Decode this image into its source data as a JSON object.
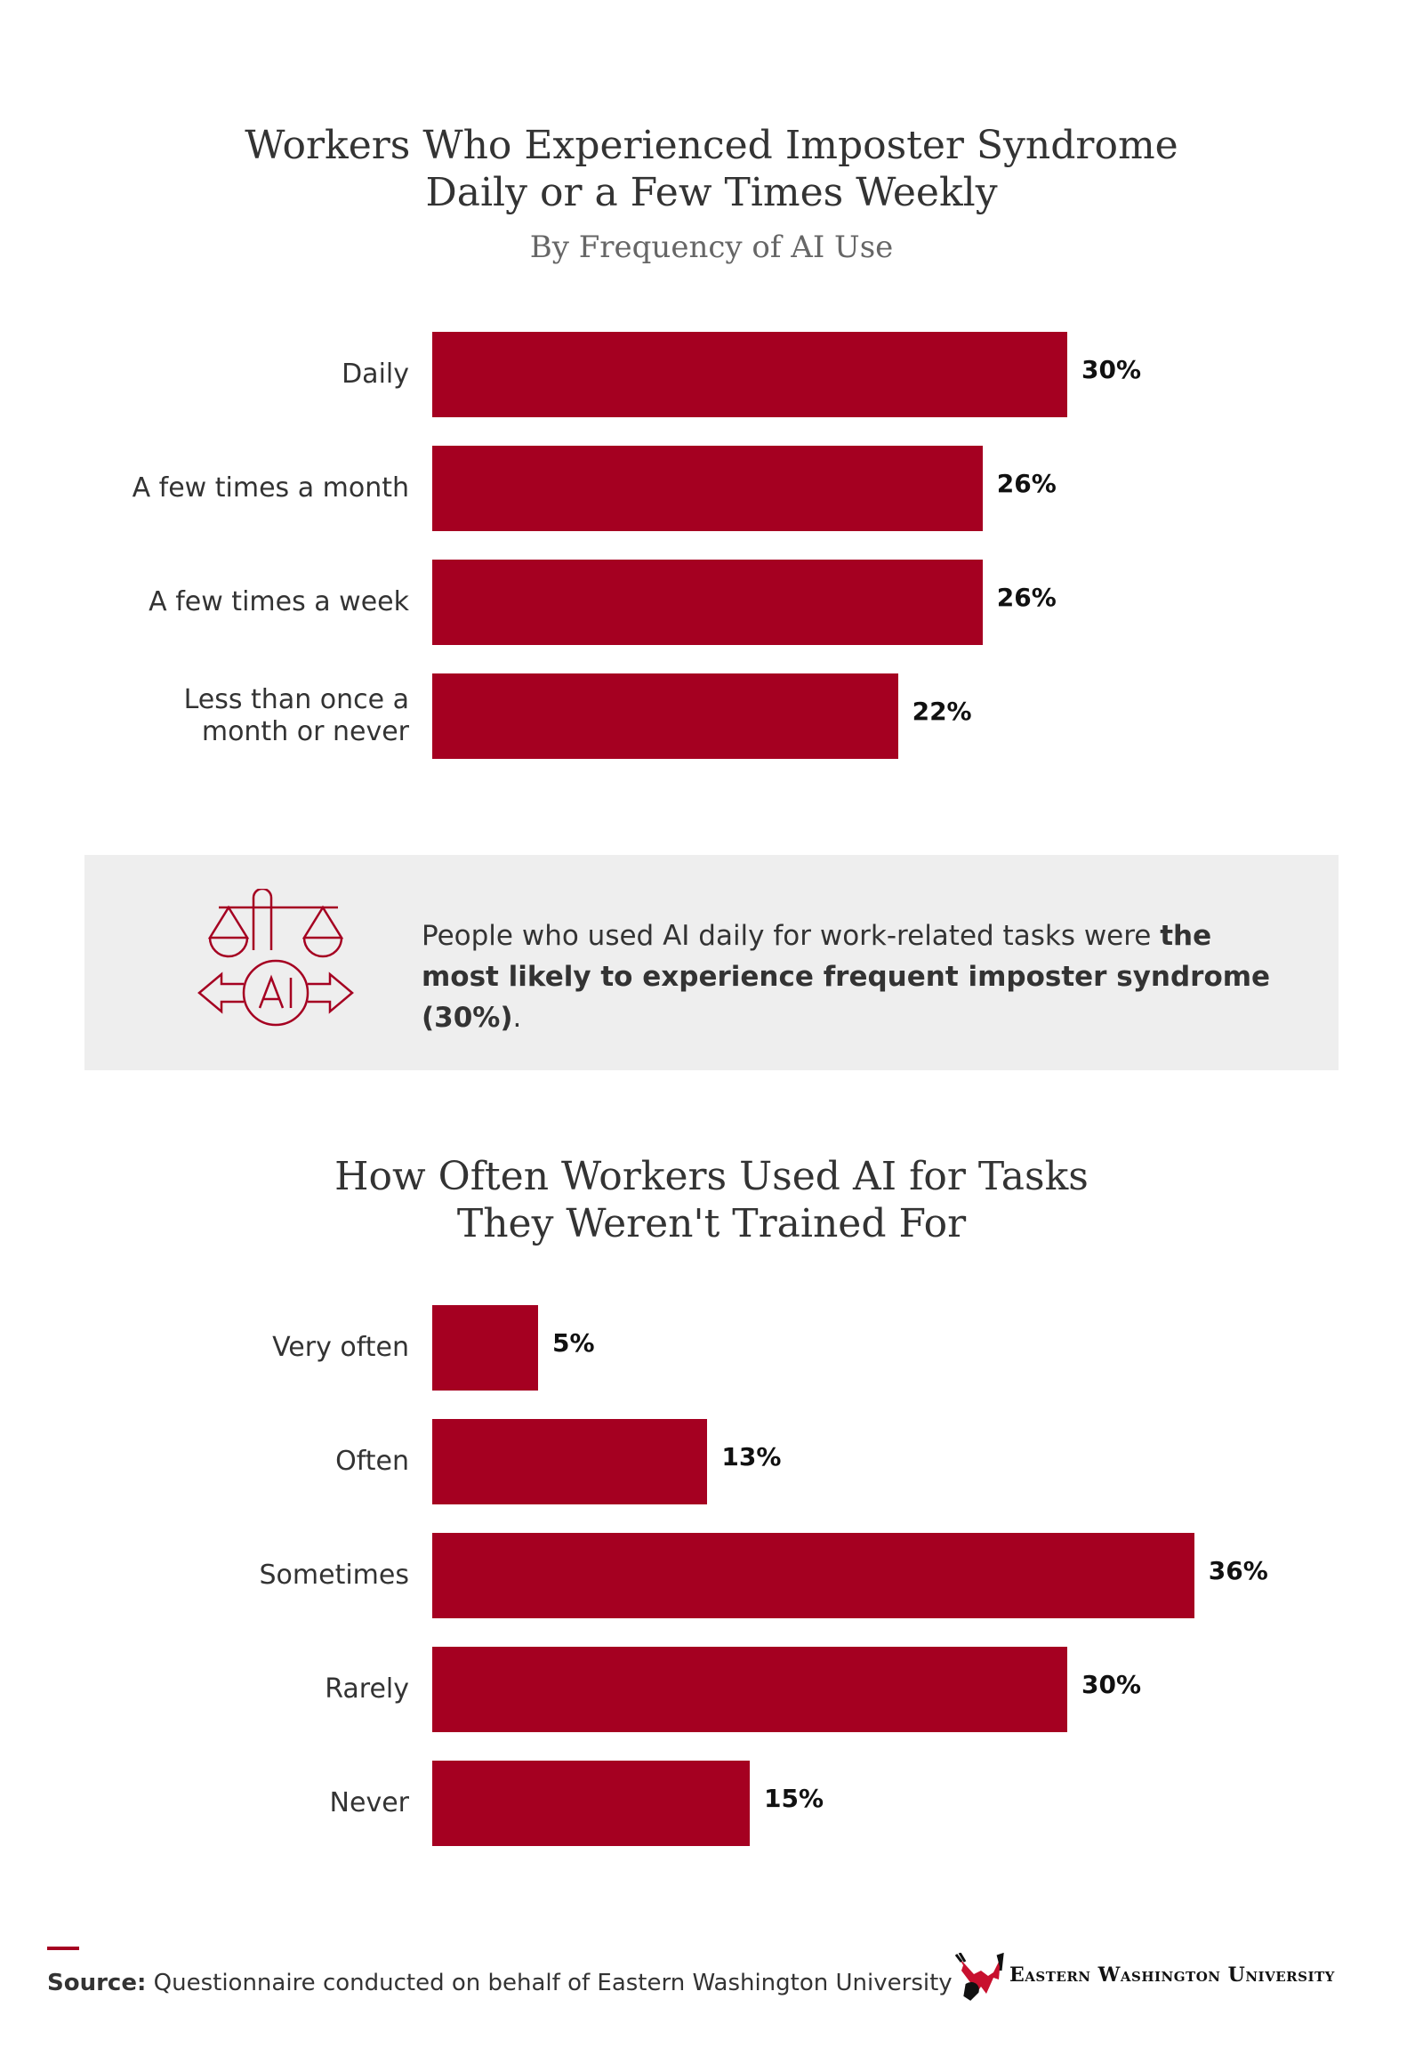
{
  "colors": {
    "bar": "#a50021",
    "callout_bg": "#eeeeee"
  },
  "chart_data": [
    {
      "type": "bar",
      "orientation": "horizontal",
      "title": "Workers Who Experienced Imposter Syndrome Daily or a Few Times Weekly",
      "title_lines": [
        "Workers Who Experienced Imposter Syndrome",
        "Daily or a Few Times Weekly"
      ],
      "subtitle": "By Frequency of AI Use",
      "categories": [
        "Daily",
        "A few times a month",
        "A few times a week",
        "Less than once a month or never"
      ],
      "category_lines": [
        [
          "Daily"
        ],
        [
          "A few times a month"
        ],
        [
          "A few times a week"
        ],
        [
          "Less than once a",
          "month or never"
        ]
      ],
      "values": [
        30,
        26,
        26,
        22
      ],
      "labels": [
        "30%",
        "26%",
        "26%",
        "22%"
      ],
      "unit": "%",
      "grid": false
    },
    {
      "type": "bar",
      "orientation": "horizontal",
      "title": "How Often Workers Used AI for Tasks They Weren't Trained For",
      "title_lines": [
        "How Often Workers Used AI for Tasks",
        "They Weren't Trained For"
      ],
      "categories": [
        "Very often",
        "Often",
        "Sometimes",
        "Rarely",
        "Never"
      ],
      "category_lines": [
        [
          "Very often"
        ],
        [
          "Often"
        ],
        [
          "Sometimes"
        ],
        [
          "Rarely"
        ],
        [
          "Never"
        ]
      ],
      "values": [
        5,
        13,
        36,
        30,
        15
      ],
      "labels": [
        "5%",
        "13%",
        "36%",
        "30%",
        "15%"
      ],
      "unit": "%",
      "grid": false
    }
  ],
  "callout": {
    "icon": "scales-ai-arrows-icon",
    "text_normal": "People who used AI daily for work-related tasks were ",
    "text_bold": "the most likely to experience frequent imposter syndrome (30%)",
    "text_end": "."
  },
  "footer": {
    "source_label": "Source:",
    "source_text": " Questionnaire conducted on behalf of Eastern Washington University",
    "logo_text": "Eastern Washington University",
    "logo_icon": "eagle-icon"
  }
}
